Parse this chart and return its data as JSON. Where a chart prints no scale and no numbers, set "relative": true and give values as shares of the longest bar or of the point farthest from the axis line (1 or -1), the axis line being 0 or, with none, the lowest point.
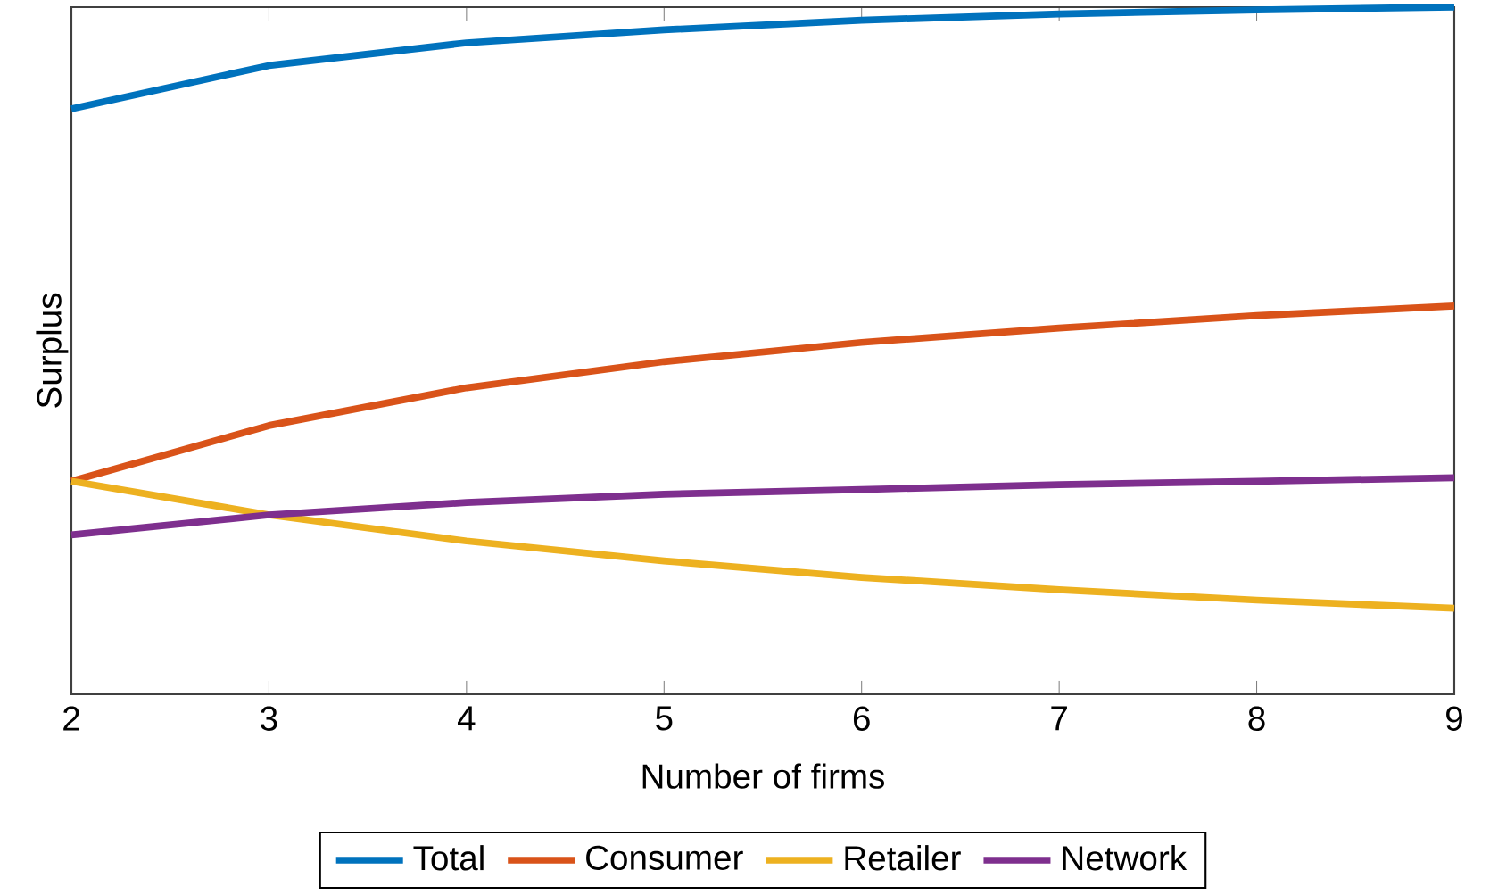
{
  "chart_data": {
    "type": "line",
    "xlabel": "Number of firms",
    "ylabel": "Surplus",
    "relative": true,
    "tick_labels": "x",
    "x": [
      2,
      3,
      4,
      5,
      6,
      7,
      8,
      9
    ],
    "xlim": [
      2,
      9
    ],
    "xticks": [
      2,
      3,
      4,
      5,
      6,
      7,
      8,
      9
    ],
    "legend": "bottom",
    "marker": "none",
    "line_style": "solid",
    "series": [
      {
        "name": "Total",
        "color": "#0072bd",
        "values": [
          0.852,
          0.915,
          0.948,
          0.967,
          0.981,
          0.99,
          0.996,
          1
        ]
      },
      {
        "name": "Consumer",
        "color": "#d95319",
        "values": [
          0.31,
          0.391,
          0.446,
          0.484,
          0.512,
          0.533,
          0.551,
          0.565
        ]
      },
      {
        "name": "Retailer",
        "color": "#edb120",
        "values": [
          0.31,
          0.261,
          0.223,
          0.194,
          0.17,
          0.152,
          0.137,
          0.125
        ]
      },
      {
        "name": "Network",
        "color": "#7e2f8e",
        "values": [
          0.232,
          0.261,
          0.279,
          0.291,
          0.298,
          0.305,
          0.31,
          0.315
        ]
      }
    ]
  }
}
